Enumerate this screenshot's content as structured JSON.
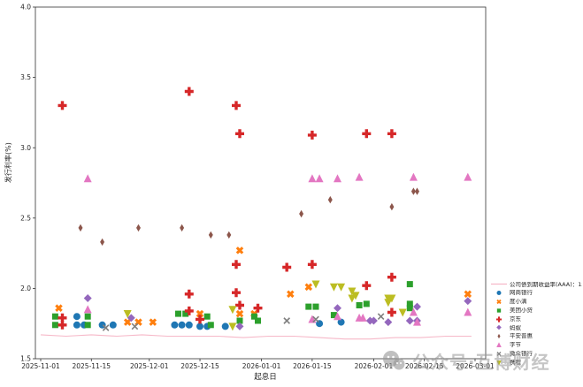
{
  "watermark": {
    "text": "公众号·互博财经",
    "icon": "wechat-icon"
  },
  "chart_data": {
    "type": "scatter",
    "title": "",
    "xlabel": "起息日",
    "ylabel": "发行利率(%)",
    "grid": false,
    "legend_position": "right-outside",
    "ylim": [
      1.5,
      4.0
    ],
    "y_ticks": [
      "1.5",
      "2.0",
      "2.5",
      "3.0",
      "3.5",
      "4.0"
    ],
    "x_range": [
      "2025-11-01",
      "2026-03-01"
    ],
    "x_ticks": [
      "2025-11-01",
      "2025-11-15",
      "2025-12-01",
      "2025-12-15",
      "2026-01-01",
      "2026-01-15",
      "2026-02-01",
      "2026-02-15",
      "2026-03-01"
    ],
    "line_series": {
      "name": "公司债到期收益率(AAA)：1年",
      "color": "#f6b8c8",
      "points": [
        [
          "2025-11-01",
          1.67
        ],
        [
          "2025-11-08",
          1.66
        ],
        [
          "2025-11-15",
          1.67
        ],
        [
          "2025-11-22",
          1.66
        ],
        [
          "2025-11-29",
          1.67
        ],
        [
          "2025-12-06",
          1.66
        ],
        [
          "2025-12-13",
          1.66
        ],
        [
          "2025-12-20",
          1.66
        ],
        [
          "2025-12-27",
          1.65
        ],
        [
          "2026-01-03",
          1.66
        ],
        [
          "2026-01-10",
          1.66
        ],
        [
          "2026-01-17",
          1.65
        ],
        [
          "2026-01-24",
          1.64
        ],
        [
          "2026-01-31",
          1.64
        ],
        [
          "2026-02-07",
          1.65
        ],
        [
          "2026-02-14",
          1.65
        ],
        [
          "2026-02-21",
          1.66
        ],
        [
          "2026-02-28",
          1.66
        ]
      ]
    },
    "series": [
      {
        "name": "网商银行",
        "marker": "circle",
        "color": "#1f77b4",
        "points": [
          [
            "2025-11-11",
            1.8
          ],
          [
            "2025-11-11",
            1.74
          ],
          [
            "2025-11-13",
            1.74
          ],
          [
            "2025-11-18",
            1.74
          ],
          [
            "2025-11-21",
            1.74
          ],
          [
            "2025-12-08",
            1.74
          ],
          [
            "2025-12-10",
            1.74
          ],
          [
            "2025-12-12",
            1.74
          ],
          [
            "2025-12-15",
            1.73
          ],
          [
            "2025-12-17",
            1.73
          ],
          [
            "2025-12-22",
            1.73
          ],
          [
            "2026-01-17",
            1.75
          ],
          [
            "2026-01-23",
            1.76
          ]
        ]
      },
      {
        "name": "度小满",
        "marker": "X",
        "color": "#ff7f0e",
        "points": [
          [
            "2025-11-06",
            1.86
          ],
          [
            "2025-11-25",
            1.76
          ],
          [
            "2025-11-28",
            1.76
          ],
          [
            "2025-12-02",
            1.76
          ],
          [
            "2025-12-15",
            1.82
          ],
          [
            "2025-12-26",
            2.27
          ],
          [
            "2025-12-26",
            1.82
          ],
          [
            "2025-12-30",
            1.82
          ],
          [
            "2026-01-09",
            1.96
          ],
          [
            "2026-01-14",
            2.01
          ],
          [
            "2026-02-27",
            1.96
          ]
        ]
      },
      {
        "name": "美团小贷",
        "marker": "square",
        "color": "#2ca02c",
        "points": [
          [
            "2025-11-05",
            1.8
          ],
          [
            "2025-11-05",
            1.74
          ],
          [
            "2025-11-14",
            1.8
          ],
          [
            "2025-11-14",
            1.74
          ],
          [
            "2025-12-09",
            1.82
          ],
          [
            "2025-12-11",
            1.82
          ],
          [
            "2025-12-17",
            1.8
          ],
          [
            "2025-12-18",
            1.74
          ],
          [
            "2025-12-26",
            1.77
          ],
          [
            "2025-12-30",
            1.8
          ],
          [
            "2025-12-31",
            1.77
          ],
          [
            "2026-01-14",
            1.87
          ],
          [
            "2026-01-16",
            1.87
          ],
          [
            "2026-01-21",
            1.81
          ],
          [
            "2026-01-28",
            1.88
          ],
          [
            "2026-01-30",
            1.89
          ],
          [
            "2026-02-11",
            2.03
          ],
          [
            "2026-02-11",
            1.89
          ],
          [
            "2026-02-11",
            1.86
          ]
        ]
      },
      {
        "name": "京东",
        "marker": "plus",
        "color": "#d62728",
        "points": [
          [
            "2025-11-07",
            3.3
          ],
          [
            "2025-12-12",
            3.4
          ],
          [
            "2025-12-25",
            3.3
          ],
          [
            "2025-12-26",
            3.1
          ],
          [
            "2026-01-15",
            3.09
          ],
          [
            "2026-01-30",
            3.1
          ],
          [
            "2026-02-06",
            3.1
          ],
          [
            "2025-12-25",
            2.17
          ],
          [
            "2026-01-08",
            2.15
          ],
          [
            "2026-01-15",
            2.17
          ],
          [
            "2026-02-06",
            2.08
          ],
          [
            "2026-01-30",
            2.02
          ],
          [
            "2025-12-12",
            1.96
          ],
          [
            "2025-12-25",
            1.97
          ],
          [
            "2025-12-26",
            1.88
          ],
          [
            "2025-12-31",
            1.86
          ],
          [
            "2025-12-12",
            1.84
          ],
          [
            "2025-12-15",
            1.78
          ],
          [
            "2025-11-07",
            1.79
          ],
          [
            "2025-11-07",
            1.74
          ],
          [
            "2026-02-06",
            1.83
          ]
        ]
      },
      {
        "name": "蚂蚁",
        "marker": "diamond",
        "color": "#9467bd",
        "points": [
          [
            "2025-11-14",
            1.93
          ],
          [
            "2025-11-26",
            1.79
          ],
          [
            "2025-12-26",
            1.73
          ],
          [
            "2026-01-22",
            1.86
          ],
          [
            "2026-01-31",
            1.77
          ],
          [
            "2026-02-01",
            1.77
          ],
          [
            "2026-02-05",
            1.76
          ],
          [
            "2026-02-11",
            1.77
          ],
          [
            "2026-02-13",
            1.87
          ],
          [
            "2026-02-13",
            1.77
          ],
          [
            "2026-02-27",
            1.91
          ]
        ]
      },
      {
        "name": "平安普惠",
        "marker": "thin-diamond",
        "color": "#8c564b",
        "points": [
          [
            "2025-11-12",
            2.43
          ],
          [
            "2025-11-18",
            2.33
          ],
          [
            "2025-11-28",
            2.43
          ],
          [
            "2025-12-10",
            2.43
          ],
          [
            "2025-12-18",
            2.38
          ],
          [
            "2025-12-23",
            2.38
          ],
          [
            "2026-01-12",
            2.53
          ],
          [
            "2026-01-20",
            2.63
          ],
          [
            "2026-02-06",
            2.58
          ],
          [
            "2026-02-12",
            2.69
          ],
          [
            "2026-02-13",
            2.69
          ]
        ]
      },
      {
        "name": "字节",
        "marker": "triangle-up",
        "color": "#e377c2",
        "points": [
          [
            "2025-11-14",
            2.78
          ],
          [
            "2026-01-15",
            2.78
          ],
          [
            "2026-01-17",
            2.78
          ],
          [
            "2026-01-22",
            2.78
          ],
          [
            "2026-01-28",
            2.79
          ],
          [
            "2026-02-12",
            2.79
          ],
          [
            "2026-02-27",
            2.79
          ],
          [
            "2025-11-14",
            1.85
          ],
          [
            "2026-01-15",
            1.78
          ],
          [
            "2026-01-22",
            1.8
          ],
          [
            "2026-01-28",
            1.79
          ],
          [
            "2026-01-29",
            1.79
          ],
          [
            "2026-02-12",
            1.83
          ],
          [
            "2026-02-13",
            1.76
          ],
          [
            "2026-02-27",
            1.83
          ]
        ]
      },
      {
        "name": "微众银行",
        "marker": "x",
        "color": "#7f7f7f",
        "points": [
          [
            "2025-11-19",
            1.72
          ],
          [
            "2025-11-27",
            1.73
          ],
          [
            "2026-01-08",
            1.77
          ],
          [
            "2026-01-16",
            1.78
          ],
          [
            "2026-02-03",
            1.8
          ]
        ]
      },
      {
        "name": "携程",
        "marker": "triangle-down",
        "color": "#bcbd22",
        "points": [
          [
            "2025-11-25",
            1.82
          ],
          [
            "2025-12-24",
            1.85
          ],
          [
            "2025-12-24",
            1.73
          ],
          [
            "2026-01-16",
            2.03
          ],
          [
            "2026-01-21",
            2.01
          ],
          [
            "2026-01-23",
            2.01
          ],
          [
            "2026-01-26",
            1.98
          ],
          [
            "2026-01-26",
            1.93
          ],
          [
            "2026-01-27",
            1.95
          ],
          [
            "2026-02-05",
            1.93
          ],
          [
            "2026-02-05",
            1.9
          ],
          [
            "2026-02-06",
            1.93
          ],
          [
            "2026-02-09",
            1.83
          ]
        ]
      }
    ]
  }
}
